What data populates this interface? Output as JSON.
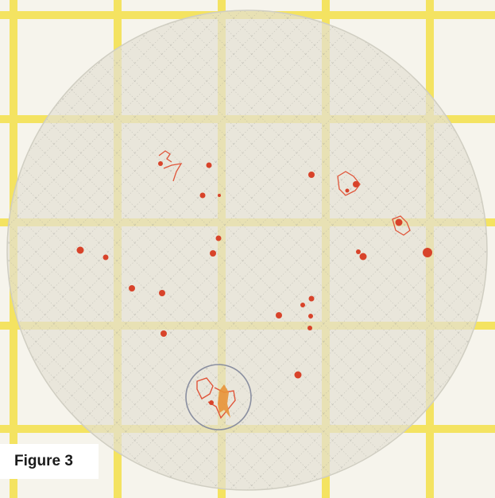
{
  "caption": {
    "label": "Figure 3"
  },
  "colors": {
    "background": "#f3f1e8",
    "grid_line": "#f4e560",
    "film": "#e4e2d6",
    "colony": "#d8432a",
    "highlight_circle": "#8a8fa0"
  },
  "subject": {
    "highlighted_colony_count": 1
  }
}
